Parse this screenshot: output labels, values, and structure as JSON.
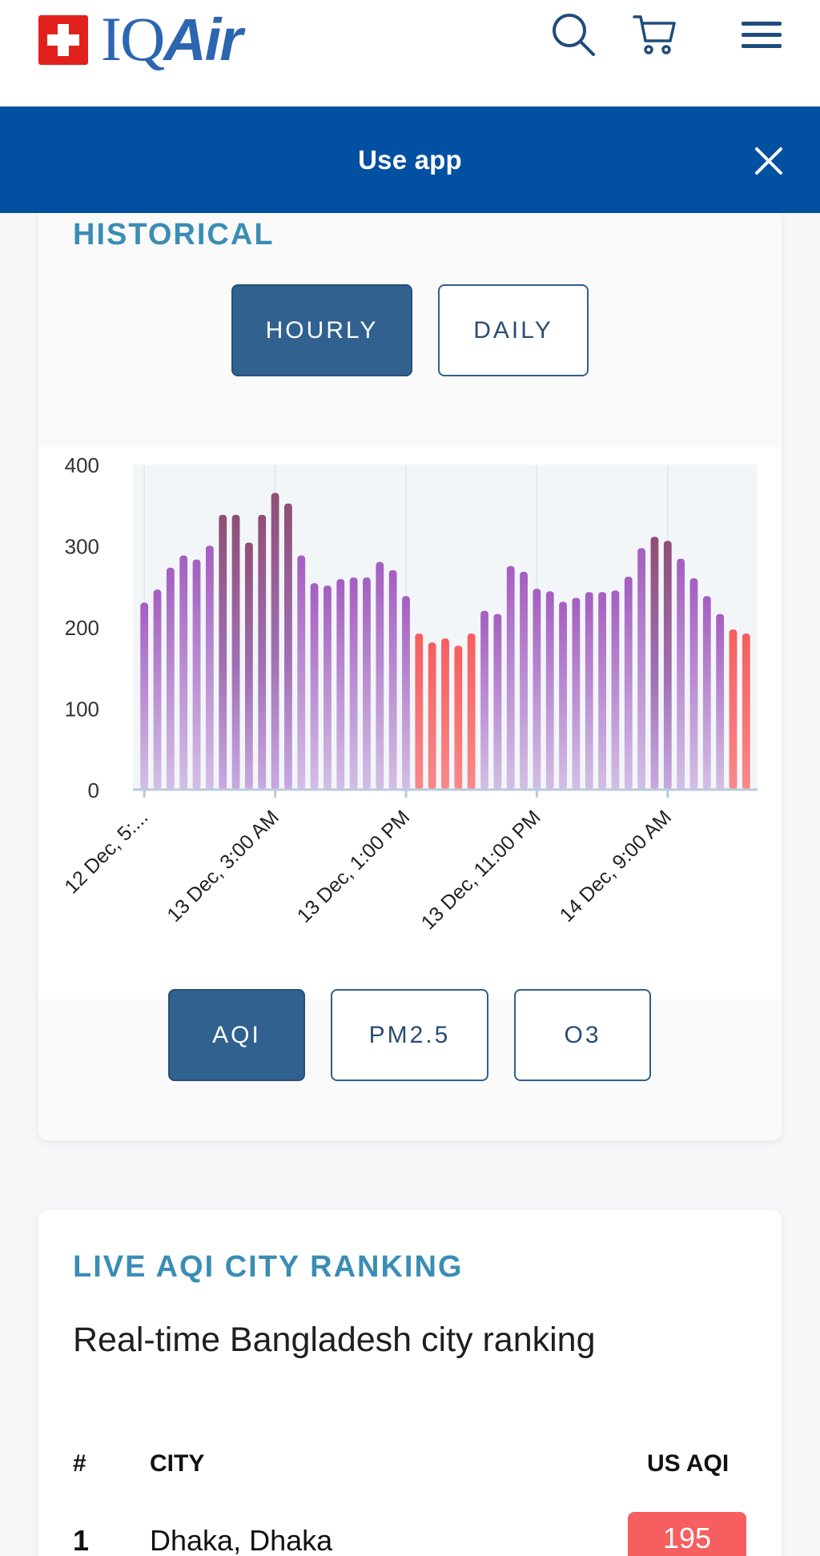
{
  "header": {
    "logo_text_1": "IQ",
    "logo_text_2": "Air",
    "icons": [
      "search-icon",
      "cart-icon",
      "menu-icon"
    ]
  },
  "banner": {
    "label": "Use app",
    "close_icon": "close-icon",
    "bg_color": "#0250a1"
  },
  "historical": {
    "title": "HISTORICAL",
    "period_tabs": [
      {
        "label": "HOURLY",
        "active": true
      },
      {
        "label": "DAILY",
        "active": false
      }
    ],
    "pollutant_tabs": [
      {
        "label": "AQI",
        "active": true
      },
      {
        "label": "PM2.5",
        "active": false
      },
      {
        "label": "O3",
        "active": false
      }
    ]
  },
  "chart_data": {
    "type": "bar",
    "title": "",
    "xlabel": "",
    "ylabel": "",
    "ylim": [
      0,
      400
    ],
    "yticks": [
      0,
      100,
      200,
      300,
      400
    ],
    "x_tick_labels": [
      "12 Dec, 5:...",
      "13 Dec, 3:00 AM",
      "13 Dec, 1:00 PM",
      "13 Dec, 11:00 PM",
      "14 Dec, 9:00 AM"
    ],
    "x_tick_indices": [
      0,
      10,
      20,
      30,
      40
    ],
    "grid": true,
    "values": [
      230,
      246,
      273,
      288,
      283,
      300,
      338,
      338,
      304,
      338,
      365,
      352,
      288,
      254,
      251,
      259,
      261,
      261,
      280,
      270,
      238,
      192,
      181,
      186,
      177,
      192,
      220,
      216,
      275,
      268,
      247,
      244,
      231,
      236,
      243,
      243,
      245,
      262,
      297,
      311,
      306,
      284,
      260,
      238,
      216,
      197,
      192
    ],
    "colors": {
      "unhealthy_top": "#a45ec0",
      "very_unhealthy_top": "#8f4e75",
      "unhealthy_for_sensitive": "#f65e5f"
    }
  },
  "ranking": {
    "title": "LIVE AQI CITY RANKING",
    "subtitle": "Real-time Bangladesh city ranking",
    "columns": [
      "#",
      "CITY",
      "US AQI"
    ],
    "rows": [
      {
        "rank": "1",
        "city": "Dhaka, Dhaka",
        "aqi": "195"
      }
    ]
  }
}
